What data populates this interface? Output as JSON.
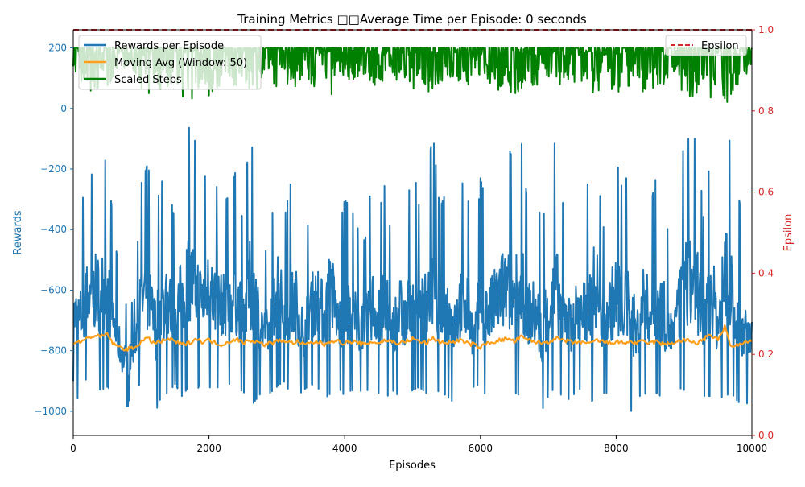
{
  "chart_data": {
    "type": "line",
    "title": "Training Metrics □□Average Time per Episode: 0 seconds",
    "xlabel": "Episodes",
    "ylabel_left": "Rewards",
    "ylabel_right": "Epsilon",
    "xlim": [
      0,
      10000
    ],
    "ylim_left": [
      -1080,
      260
    ],
    "ylim_right": [
      0.0,
      1.0
    ],
    "x_ticks": [
      0,
      2000,
      4000,
      6000,
      8000,
      10000
    ],
    "x_tick_labels": [
      "0",
      "2000",
      "4000",
      "6000",
      "8000",
      "10000"
    ],
    "y_left_ticks": [
      200,
      0,
      -200,
      -400,
      -600,
      -800,
      -1000
    ],
    "y_left_tick_labels": [
      "200",
      "0",
      "−200",
      "−400",
      "−600",
      "−800",
      "−1000"
    ],
    "y_right_ticks": [
      1.0,
      0.8,
      0.6,
      0.4,
      0.2,
      0.0
    ],
    "y_right_tick_labels": [
      "1.0",
      "0.8",
      "0.6",
      "0.4",
      "0.2",
      "0.0"
    ],
    "grid": false,
    "legend_left_placement": "upper-left",
    "legend_right_placement": "upper-right",
    "colors": {
      "left_axis": "#1f77b4",
      "right_axis": "#d62728",
      "rewards": "#1f77b4",
      "moving_avg": "#ff9f1c",
      "scaled_steps": "#008000",
      "epsilon": "#d62728"
    },
    "series": [
      {
        "name": "Rewards per Episode",
        "axis": "left",
        "color": "#1f77b4",
        "x": [
          0,
          100,
          200,
          300,
          400,
          500,
          600,
          700,
          800,
          900,
          1000,
          1100,
          1200,
          1300,
          1400,
          1500,
          1600,
          1700,
          1800,
          1900,
          2000,
          2100,
          2200,
          2300,
          2400,
          2500,
          2600,
          2700,
          2800,
          2900,
          3000,
          3100,
          3200,
          3300,
          3400,
          3500,
          3600,
          3700,
          3800,
          3900,
          4000,
          4100,
          4200,
          4300,
          4400,
          4500,
          4600,
          4700,
          4800,
          4900,
          5000,
          5100,
          5200,
          5300,
          5400,
          5500,
          5600,
          5700,
          5800,
          5900,
          6000,
          6100,
          6200,
          6300,
          6400,
          6500,
          6600,
          6700,
          6800,
          6900,
          7000,
          7100,
          7200,
          7300,
          7400,
          7500,
          7600,
          7700,
          7800,
          7900,
          8000,
          8100,
          8200,
          8300,
          8400,
          8500,
          8600,
          8700,
          8800,
          8900,
          9000,
          9100,
          9200,
          9300,
          9400,
          9500,
          9600,
          9700,
          9800,
          9900,
          10000
        ],
        "high": [
          -390,
          -320,
          -260,
          -200,
          -150,
          -180,
          -400,
          -600,
          -660,
          -630,
          -250,
          -180,
          -350,
          -240,
          -250,
          -370,
          -180,
          -60,
          -110,
          -280,
          -150,
          -250,
          -310,
          -290,
          -200,
          -380,
          -65,
          -240,
          -460,
          -490,
          -80,
          -380,
          -250,
          -250,
          -500,
          -300,
          -250,
          -330,
          -120,
          -420,
          -300,
          -330,
          -400,
          -440,
          -230,
          -350,
          -240,
          -470,
          -270,
          -380,
          -160,
          -330,
          -240,
          -80,
          -330,
          -270,
          -380,
          -250,
          -240,
          -550,
          -230,
          -320,
          -260,
          -140,
          -120,
          -180,
          -100,
          -330,
          -300,
          -360,
          -320,
          -100,
          -300,
          -380,
          -330,
          -360,
          -220,
          -70,
          -410,
          -280,
          -160,
          -280,
          -180,
          -470,
          -200,
          -330,
          -210,
          -300,
          -470,
          -380,
          -100,
          -100,
          -100,
          -400,
          -100,
          -400,
          -20,
          -140,
          -280,
          -440,
          -450
        ],
        "low": [
          -900,
          -990,
          -880,
          -920,
          -930,
          -920,
          -940,
          -950,
          -990,
          -900,
          -920,
          -940,
          -1010,
          -950,
          -940,
          -910,
          -950,
          -920,
          -940,
          -900,
          -920,
          -930,
          -900,
          -910,
          -940,
          -930,
          -990,
          -960,
          -930,
          -940,
          -920,
          -900,
          -940,
          -950,
          -930,
          -910,
          -920,
          -960,
          -940,
          -920,
          -950,
          -930,
          -940,
          -920,
          -950,
          -940,
          -960,
          -930,
          -950,
          -960,
          -930,
          -920,
          -940,
          -950,
          -930,
          -950,
          -970,
          -940,
          -930,
          -920,
          -910,
          -960,
          -940,
          -950,
          -960,
          -940,
          -950,
          -930,
          -960,
          -1000,
          -950,
          -920,
          -950,
          -960,
          -940,
          -920,
          -980,
          -950,
          -940,
          -940,
          -960,
          -930,
          -1010,
          -960,
          -940,
          -950,
          -940,
          -960,
          -950,
          -920,
          -930,
          -940,
          -960,
          -950,
          -950,
          -960,
          -950,
          -940,
          -970,
          -980,
          -960
        ]
      },
      {
        "name": "Moving Avg (Window: 50)",
        "axis": "left",
        "color": "#ff9f1c",
        "x": [
          0,
          100,
          200,
          300,
          400,
          500,
          600,
          700,
          800,
          900,
          1000,
          1100,
          1200,
          1300,
          1400,
          1500,
          1600,
          1700,
          1800,
          1900,
          2000,
          2100,
          2200,
          2300,
          2400,
          2500,
          2600,
          2700,
          2800,
          2900,
          3000,
          3100,
          3200,
          3300,
          3400,
          3500,
          3600,
          3700,
          3800,
          3900,
          4000,
          4100,
          4200,
          4300,
          4400,
          4500,
          4600,
          4700,
          4800,
          4900,
          5000,
          5100,
          5200,
          5300,
          5400,
          5500,
          5600,
          5700,
          5800,
          5900,
          6000,
          6100,
          6200,
          6300,
          6400,
          6500,
          6600,
          6700,
          6800,
          6900,
          7000,
          7100,
          7200,
          7300,
          7400,
          7500,
          7600,
          7700,
          7800,
          7900,
          8000,
          8100,
          8200,
          8300,
          8400,
          8500,
          8600,
          8700,
          8800,
          8900,
          9000,
          9100,
          9200,
          9300,
          9400,
          9500,
          9600,
          9700,
          9800,
          9900,
          10000
        ],
        "values": [
          -775,
          -770,
          -760,
          -750,
          -755,
          -745,
          -780,
          -790,
          -795,
          -790,
          -770,
          -760,
          -775,
          -770,
          -760,
          -770,
          -780,
          -775,
          -760,
          -770,
          -765,
          -775,
          -780,
          -770,
          -760,
          -775,
          -765,
          -770,
          -780,
          -775,
          -770,
          -765,
          -775,
          -770,
          -780,
          -775,
          -770,
          -780,
          -765,
          -770,
          -775,
          -770,
          -775,
          -780,
          -770,
          -775,
          -765,
          -770,
          -775,
          -770,
          -760,
          -770,
          -775,
          -760,
          -770,
          -775,
          -770,
          -765,
          -775,
          -780,
          -790,
          -775,
          -770,
          -765,
          -760,
          -770,
          -755,
          -765,
          -770,
          -775,
          -770,
          -760,
          -765,
          -770,
          -775,
          -770,
          -780,
          -765,
          -770,
          -775,
          -770,
          -775,
          -770,
          -775,
          -770,
          -775,
          -770,
          -780,
          -775,
          -770,
          -765,
          -770,
          -775,
          -760,
          -750,
          -765,
          -720,
          -790,
          -780,
          -775,
          -770
        ]
      },
      {
        "name": "Scaled Steps",
        "axis": "left",
        "color": "#008000",
        "x": [
          0,
          100,
          200,
          300,
          400,
          500,
          600,
          700,
          800,
          900,
          1000,
          1100,
          1200,
          1300,
          1400,
          1500,
          1600,
          1700,
          1800,
          1900,
          2000,
          2100,
          2200,
          2300,
          2400,
          2500,
          2600,
          2700,
          2800,
          2900,
          3000,
          3100,
          3200,
          3300,
          3400,
          3500,
          3600,
          3700,
          3800,
          3900,
          4000,
          4100,
          4200,
          4300,
          4400,
          4500,
          4600,
          4700,
          4800,
          4900,
          5000,
          5100,
          5200,
          5300,
          5400,
          5500,
          5600,
          5700,
          5800,
          5900,
          6000,
          6100,
          6200,
          6300,
          6400,
          6500,
          6600,
          6700,
          6800,
          6900,
          7000,
          7100,
          7200,
          7300,
          7400,
          7500,
          7600,
          7700,
          7800,
          7900,
          8000,
          8100,
          8200,
          8300,
          8400,
          8500,
          8600,
          8700,
          8800,
          8900,
          9000,
          9100,
          9200,
          9300,
          9400,
          9500,
          9600,
          9700,
          9800,
          9900,
          10000
        ],
        "high": [
          200,
          200,
          200,
          200,
          200,
          200,
          200,
          200,
          200,
          200,
          200,
          200,
          200,
          200,
          200,
          200,
          200,
          200,
          200,
          200,
          200,
          200,
          200,
          200,
          200,
          200,
          200,
          200,
          200,
          200,
          200,
          200,
          200,
          200,
          200,
          200,
          200,
          200,
          200,
          200,
          200,
          200,
          200,
          200,
          200,
          200,
          200,
          200,
          200,
          200,
          200,
          200,
          200,
          200,
          200,
          200,
          200,
          200,
          200,
          200,
          200,
          200,
          200,
          200,
          200,
          200,
          200,
          200,
          200,
          200,
          200,
          200,
          200,
          200,
          200,
          200,
          200,
          200,
          200,
          200,
          200,
          200,
          200,
          200,
          200,
          200,
          200,
          200,
          200,
          200,
          200,
          200,
          200,
          200,
          200,
          200,
          200,
          200,
          200,
          200,
          200
        ],
        "low": [
          110,
          80,
          50,
          60,
          70,
          60,
          100,
          120,
          130,
          120,
          60,
          40,
          90,
          50,
          60,
          90,
          40,
          30,
          30,
          60,
          40,
          60,
          80,
          70,
          50,
          100,
          30,
          60,
          120,
          130,
          40,
          100,
          60,
          70,
          120,
          80,
          60,
          80,
          40,
          100,
          80,
          90,
          100,
          110,
          50,
          90,
          60,
          120,
          70,
          100,
          40,
          80,
          60,
          30,
          80,
          70,
          100,
          60,
          60,
          130,
          60,
          80,
          70,
          40,
          40,
          50,
          40,
          80,
          70,
          90,
          80,
          40,
          70,
          90,
          80,
          90,
          60,
          20,
          100,
          70,
          40,
          70,
          50,
          110,
          50,
          80,
          50,
          70,
          110,
          90,
          40,
          40,
          40,
          100,
          20,
          90,
          10,
          40,
          70,
          110,
          130
        ]
      },
      {
        "name": "Epsilon",
        "axis": "right",
        "color": "#d62728",
        "style": "dashed",
        "x": [
          0,
          10000
        ],
        "values": [
          1.0,
          1.0
        ]
      }
    ]
  }
}
